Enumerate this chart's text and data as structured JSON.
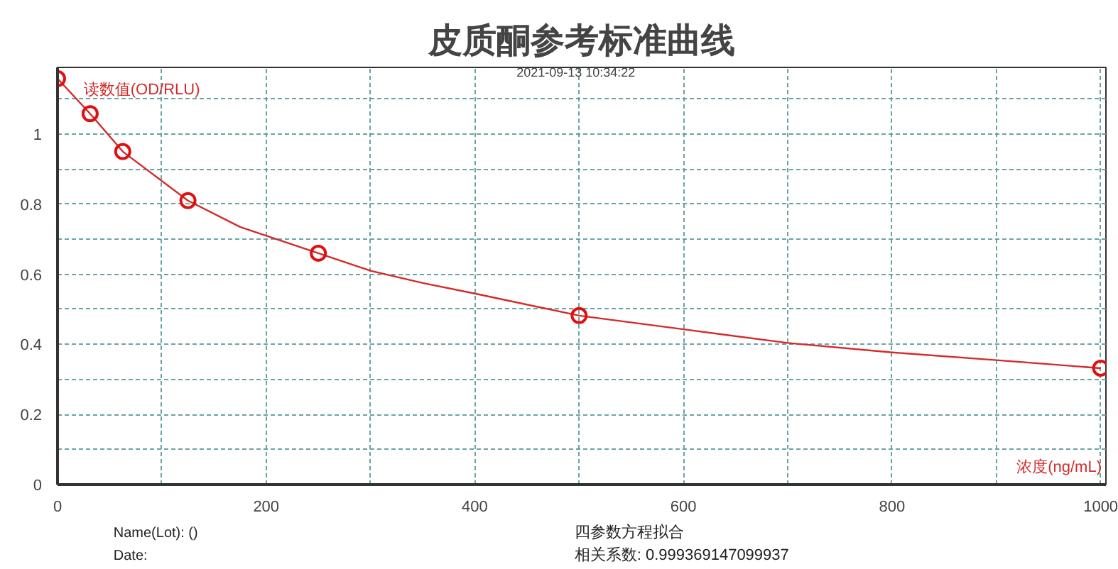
{
  "chart_data": {
    "type": "scatter",
    "title": "皮质酮参考标准曲线",
    "xlabel": "浓度(ng/mL)",
    "ylabel": "读数值(OD/RLU)",
    "annotations": [
      "2021-09-13 10:34:22",
      "Name(Lot): ()",
      "Date:",
      "四参数方程拟合",
      "相关系数: 0.999369147099937"
    ],
    "series": [
      {
        "type": "line",
        "color": "#d42a2a",
        "line_style": "solid",
        "x": [
          0,
          31.25,
          62.5,
          125,
          175,
          250,
          300,
          350,
          400,
          500,
          600,
          700,
          800,
          900,
          1000
        ],
        "values": [
          1.158,
          1.058,
          0.95,
          0.81,
          0.735,
          0.66,
          0.61,
          0.575,
          0.545,
          0.482,
          0.443,
          0.404,
          0.377,
          0.355,
          0.332
        ]
      },
      {
        "color": "#e01010",
        "marker": "circle",
        "x": [
          0,
          31.25,
          62.5,
          125,
          250,
          500,
          1000
        ],
        "values": [
          1.158,
          1.058,
          0.95,
          0.81,
          0.66,
          0.482,
          0.332
        ]
      }
    ],
    "xlim": [
      0,
      1005
    ],
    "ylim": [
      0,
      1.19
    ],
    "xticks": [
      0,
      {
        "value": 100,
        "label": null
      },
      200,
      {
        "value": 300,
        "label": null
      },
      400,
      {
        "value": 500,
        "label": null
      },
      600,
      {
        "value": 700,
        "label": null
      },
      800,
      {
        "value": 900,
        "label": null
      },
      1000
    ],
    "yticks": [
      0,
      {
        "value": 0.1,
        "label": null
      },
      {
        "value": 0.2,
        "label": "0.2"
      },
      {
        "value": 0.3,
        "label": null
      },
      {
        "value": 0.4,
        "label": "0.4"
      },
      {
        "value": 0.5,
        "label": null
      },
      {
        "value": 0.6,
        "label": "0.6"
      },
      {
        "value": 0.7,
        "label": null
      },
      {
        "value": 0.8,
        "label": "0.8"
      },
      {
        "value": 0.9,
        "label": null
      },
      1,
      {
        "value": 1.1,
        "label": null
      }
    ],
    "grid": true
  }
}
